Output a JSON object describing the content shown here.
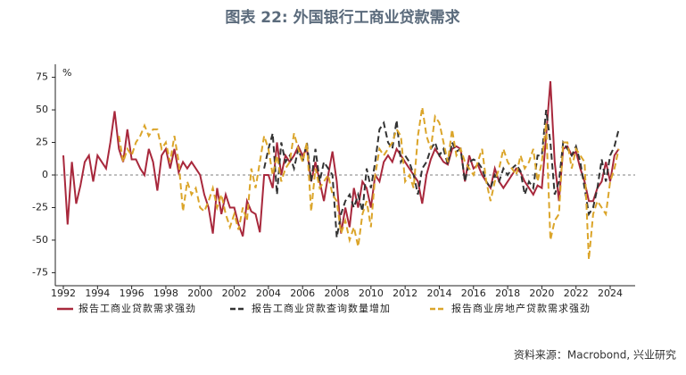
{
  "chart_data": {
    "type": "line",
    "title": "图表 22: 外国银行工商业贷款需求",
    "y_unit": "%",
    "source": "资料来源：Macrobond, 兴业研究",
    "x": [
      1992,
      1992.25,
      1992.5,
      1992.75,
      1993,
      1993.25,
      1993.5,
      1993.75,
      1994,
      1994.25,
      1994.5,
      1994.75,
      1995,
      1995.25,
      1995.5,
      1995.75,
      1996,
      1996.25,
      1996.5,
      1996.75,
      1997,
      1997.25,
      1997.5,
      1997.75,
      1998,
      1998.25,
      1998.5,
      1998.75,
      1999,
      1999.25,
      1999.5,
      1999.75,
      2000,
      2000.25,
      2000.5,
      2000.75,
      2001,
      2001.25,
      2001.5,
      2001.75,
      2002,
      2002.25,
      2002.5,
      2002.75,
      2003,
      2003.25,
      2003.5,
      2003.75,
      2004,
      2004.25,
      2004.5,
      2004.75,
      2005,
      2005.25,
      2005.5,
      2005.75,
      2006,
      2006.25,
      2006.5,
      2006.75,
      2007,
      2007.25,
      2007.5,
      2007.75,
      2008,
      2008.25,
      2008.5,
      2008.75,
      2009,
      2009.25,
      2009.5,
      2009.75,
      2010,
      2010.25,
      2010.5,
      2010.75,
      2011,
      2011.25,
      2011.5,
      2011.75,
      2012,
      2012.25,
      2012.5,
      2012.75,
      2013,
      2013.25,
      2013.5,
      2013.75,
      2014,
      2014.25,
      2014.5,
      2014.75,
      2015,
      2015.25,
      2015.5,
      2015.75,
      2016,
      2016.25,
      2016.5,
      2016.75,
      2017,
      2017.25,
      2017.5,
      2017.75,
      2018,
      2018.25,
      2018.5,
      2018.75,
      2019,
      2019.25,
      2019.5,
      2019.75,
      2020,
      2020.25,
      2020.5,
      2020.75,
      2021,
      2021.25,
      2021.5,
      2021.75,
      2022,
      2022.25,
      2022.5,
      2022.75,
      2023,
      2023.25,
      2023.5,
      2023.75,
      2024,
      2024.25,
      2024.5
    ],
    "series": [
      {
        "name": "报告工商业贷款需求强劲",
        "color": "#a8283c",
        "dash": false,
        "values": [
          15,
          -38,
          10,
          -22,
          -8,
          10,
          15,
          -5,
          15,
          10,
          5,
          25,
          49,
          20,
          10,
          35,
          12,
          12,
          5,
          0,
          20,
          10,
          -12,
          15,
          20,
          5,
          20,
          2,
          10,
          5,
          10,
          5,
          0,
          -15,
          -25,
          -45,
          -10,
          -30,
          -15,
          -25,
          -25,
          -38,
          -47,
          -20,
          -28,
          -30,
          -44,
          0,
          0,
          -10,
          25,
          0,
          15,
          10,
          15,
          22,
          15,
          20,
          -5,
          10,
          -5,
          -20,
          0,
          18,
          -5,
          -45,
          -25,
          -40,
          -10,
          -25,
          -5,
          -10,
          -25,
          0,
          -5,
          10,
          15,
          10,
          20,
          15,
          10,
          5,
          0,
          -5,
          -22,
          0,
          12,
          20,
          15,
          10,
          8,
          20,
          22,
          20,
          -5,
          15,
          5,
          8,
          0,
          -5,
          -10,
          5,
          -5,
          -10,
          -5,
          0,
          5,
          2,
          -5,
          -10,
          -15,
          -8,
          -10,
          30,
          72,
          10,
          -20,
          20,
          22,
          15,
          18,
          5,
          -5,
          -20,
          -20,
          -10,
          -5,
          10,
          -5,
          15,
          20
        ]
      },
      {
        "name": "报告工商业贷款查询数量增加",
        "color": "#333333",
        "dash": true,
        "values": [
          null,
          null,
          null,
          null,
          null,
          null,
          null,
          null,
          null,
          null,
          null,
          null,
          null,
          null,
          null,
          null,
          null,
          null,
          null,
          null,
          null,
          null,
          null,
          null,
          null,
          null,
          null,
          null,
          null,
          null,
          null,
          null,
          null,
          null,
          null,
          null,
          null,
          null,
          null,
          null,
          null,
          null,
          null,
          null,
          null,
          null,
          null,
          5,
          20,
          32,
          -15,
          25,
          10,
          15,
          5,
          20,
          10,
          25,
          -5,
          20,
          -5,
          10,
          5,
          0,
          -48,
          -30,
          -20,
          -15,
          -25,
          -15,
          -28,
          5,
          -10,
          10,
          35,
          40,
          25,
          20,
          42,
          10,
          15,
          10,
          0,
          -15,
          5,
          10,
          20,
          25,
          15,
          20,
          8,
          25,
          18,
          20,
          -5,
          10,
          12,
          10,
          5,
          -5,
          -10,
          0,
          -5,
          5,
          0,
          5,
          8,
          3,
          -15,
          -5,
          -10,
          15,
          15,
          50,
          25,
          -15,
          -5,
          25,
          20,
          15,
          22,
          10,
          -10,
          -30,
          -25,
          -10,
          12,
          -5,
          15,
          22,
          35
        ]
      },
      {
        "name": "报告商业房地产贷款需求强劲",
        "color": "#dba52a",
        "dash": true,
        "values": [
          null,
          null,
          null,
          null,
          null,
          null,
          null,
          null,
          null,
          null,
          null,
          null,
          null,
          30,
          10,
          20,
          15,
          25,
          30,
          38,
          30,
          35,
          35,
          20,
          25,
          10,
          30,
          10,
          -28,
          -5,
          -15,
          -10,
          -25,
          -28,
          -20,
          -10,
          -25,
          -15,
          -30,
          -40,
          -30,
          -42,
          -25,
          -35,
          5,
          -10,
          10,
          30,
          20,
          0,
          15,
          -5,
          5,
          10,
          32,
          20,
          10,
          25,
          -28,
          5,
          -10,
          -5,
          0,
          -15,
          -20,
          -45,
          -35,
          -50,
          -40,
          -55,
          -30,
          -20,
          -40,
          0,
          20,
          15,
          20,
          25,
          35,
          30,
          -5,
          0,
          -10,
          30,
          52,
          30,
          20,
          45,
          40,
          25,
          10,
          35,
          15,
          20,
          10,
          5,
          0,
          10,
          20,
          -5,
          -20,
          -5,
          5,
          20,
          10,
          5,
          0,
          15,
          5,
          10,
          20,
          -5,
          10,
          40,
          -50,
          -35,
          -30,
          25,
          25,
          5,
          20,
          15,
          10,
          -65,
          -30,
          -20,
          -25,
          -30,
          -5,
          5,
          20
        ]
      }
    ],
    "xlim": [
      1991.53,
      2025.46
    ],
    "ylim": [
      -85,
      85
    ],
    "xticks": [
      1992,
      1994,
      1996,
      1998,
      2000,
      2002,
      2004,
      2006,
      2008,
      2010,
      2012,
      2014,
      2016,
      2018,
      2020,
      2022,
      2024
    ],
    "yticks": [
      75,
      50,
      25,
      0,
      -25,
      -50,
      -75
    ],
    "zero_line": true,
    "legend": "bottom"
  }
}
